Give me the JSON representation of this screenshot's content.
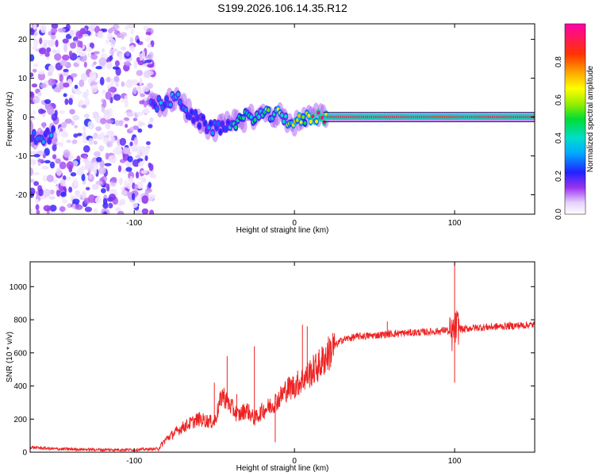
{
  "title": "S199.2026.106.14.35.R12",
  "colorbar": {
    "label": "Normalized spectral amplitude",
    "ticks": [
      {
        "value": 0.0,
        "label": "0.0"
      },
      {
        "value": 0.2,
        "label": "0.2"
      },
      {
        "value": 0.4,
        "label": "0.4"
      },
      {
        "value": 0.6,
        "label": "0.6"
      },
      {
        "value": 0.8,
        "label": "0.8"
      }
    ],
    "range": [
      0,
      1
    ]
  },
  "chart_data": [
    {
      "type": "heatmap",
      "xlabel": "Height of straight line (km)",
      "ylabel": "Frequency (Hz)",
      "xlim": [
        -165,
        150
      ],
      "ylim": [
        -25,
        24
      ],
      "xticks": [
        {
          "value": -100,
          "label": "-100"
        },
        {
          "value": 0,
          "label": "0"
        },
        {
          "value": 100,
          "label": "100"
        }
      ],
      "yticks": [
        {
          "value": 20,
          "label": "20"
        },
        {
          "value": 10,
          "label": "10"
        },
        {
          "value": 0,
          "label": "0"
        },
        {
          "value": -10,
          "label": "-10"
        },
        {
          "value": -20,
          "label": "-20"
        }
      ],
      "signal_track": [
        {
          "x": -165,
          "y": -4.5,
          "amp": 0.25
        },
        {
          "x": -160,
          "y": -5,
          "amp": 0.3
        },
        {
          "x": -155,
          "y": -5,
          "amp": 0.3
        },
        {
          "x": -88,
          "y": 3,
          "amp": 0.3
        },
        {
          "x": -78,
          "y": 4,
          "amp": 0.35
        },
        {
          "x": -72,
          "y": 5,
          "amp": 0.3
        },
        {
          "x": -68,
          "y": 2,
          "amp": 0.25
        },
        {
          "x": -60,
          "y": -1,
          "amp": 0.2
        },
        {
          "x": -50,
          "y": -3,
          "amp": 0.3
        },
        {
          "x": -40,
          "y": -2,
          "amp": 0.35
        },
        {
          "x": -30,
          "y": 0,
          "amp": 0.45
        },
        {
          "x": -20,
          "y": 0.5,
          "amp": 0.55
        },
        {
          "x": -10,
          "y": 0.5,
          "amp": 0.6
        },
        {
          "x": 0,
          "y": -1.5,
          "amp": 0.6
        },
        {
          "x": 10,
          "y": 0,
          "amp": 0.8
        },
        {
          "x": 20,
          "y": 0,
          "amp": 0.9
        },
        {
          "x": 60,
          "y": 0,
          "amp": 0.92
        },
        {
          "x": 95,
          "y": 0,
          "amp": 0.85
        },
        {
          "x": 120,
          "y": 0,
          "amp": 0.92
        },
        {
          "x": 150,
          "y": 0,
          "amp": 0.92
        }
      ],
      "noise_region": {
        "x_from": -165,
        "x_to": -88,
        "amp": 0.2
      }
    },
    {
      "type": "line",
      "xlabel": "Height of straight line (km)",
      "ylabel": "SNR (10 * v/v)",
      "xlim": [
        -165,
        150
      ],
      "ylim": [
        0,
        1150
      ],
      "xticks": [
        {
          "value": -100,
          "label": "-100"
        },
        {
          "value": 0,
          "label": "0"
        },
        {
          "value": 100,
          "label": "100"
        }
      ],
      "yticks": [
        {
          "value": 0,
          "label": "0"
        },
        {
          "value": 200,
          "label": "200"
        },
        {
          "value": 400,
          "label": "400"
        },
        {
          "value": 600,
          "label": "600"
        },
        {
          "value": 800,
          "label": "800"
        },
        {
          "value": 1000,
          "label": "1000"
        }
      ],
      "color": "#ee2222",
      "series": [
        {
          "x": [
            -165,
            -150,
            -120,
            -100,
            -85,
            -80,
            -70,
            -60,
            -50,
            -45,
            -40,
            -35,
            -30,
            -25,
            -20,
            -15,
            -10,
            -5,
            0,
            5,
            10,
            15,
            20,
            25,
            30,
            40,
            50,
            60,
            70,
            80,
            90,
            95,
            98,
            100,
            102,
            105,
            110,
            120,
            130,
            140,
            150
          ],
          "y": [
            30,
            20,
            15,
            15,
            20,
            80,
            150,
            200,
            180,
            350,
            280,
            220,
            260,
            200,
            250,
            280,
            320,
            380,
            400,
            440,
            480,
            520,
            580,
            640,
            680,
            700,
            705,
            715,
            720,
            725,
            730,
            740,
            700,
            750,
            760,
            740,
            750,
            755,
            760,
            765,
            770
          ]
        }
      ],
      "spikes": [
        {
          "x": -50,
          "y": 420
        },
        {
          "x": -42,
          "y": 580
        },
        {
          "x": -36,
          "y": 350
        },
        {
          "x": -25,
          "y": 640
        },
        {
          "x": -12,
          "y": 60
        },
        {
          "x": 5,
          "y": 770
        },
        {
          "x": 8,
          "y": 760
        },
        {
          "x": 58,
          "y": 790
        },
        {
          "x": 100,
          "y": 1150
        },
        {
          "x": 100,
          "y": 420
        }
      ]
    }
  ]
}
